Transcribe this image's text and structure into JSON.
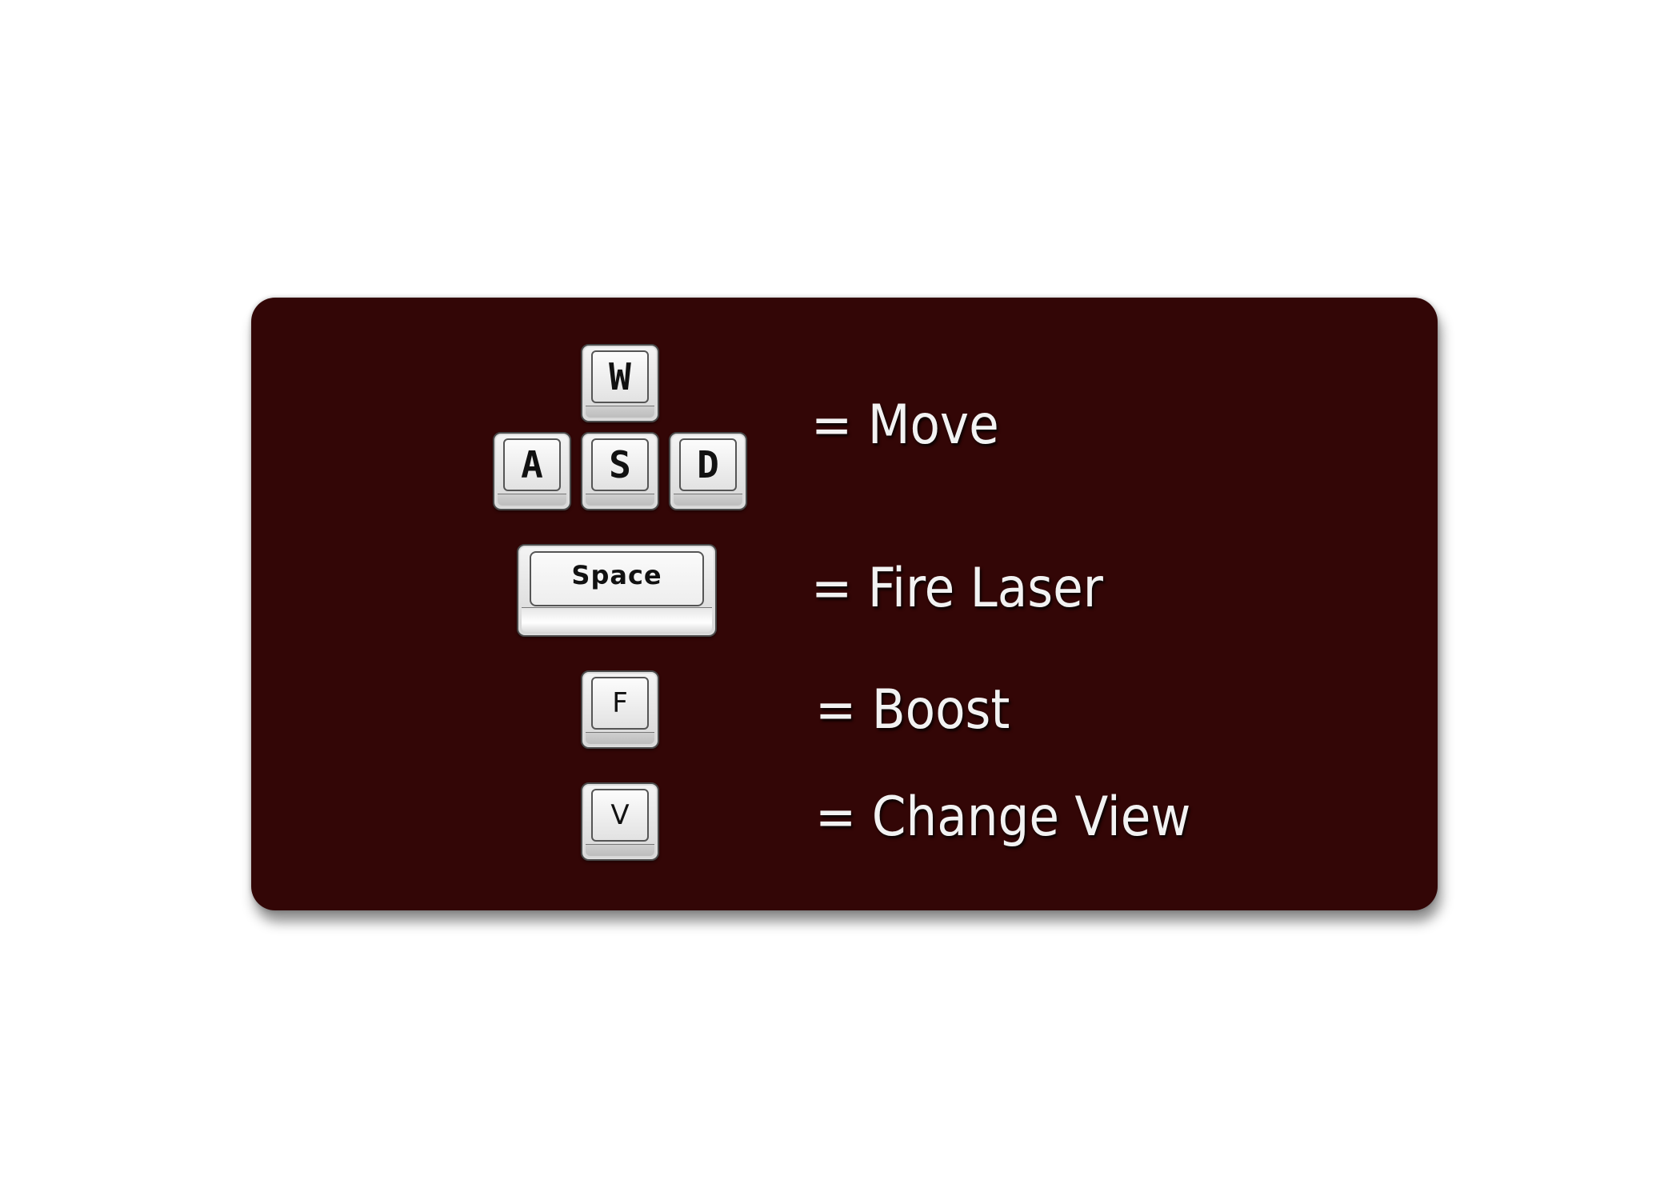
{
  "keys": {
    "w": "W",
    "a": "A",
    "s": "S",
    "d": "D",
    "space": "Space",
    "f": "F",
    "v": "V"
  },
  "actions": {
    "move": "= Move",
    "fire": "= Fire Laser",
    "boost": "= Boost",
    "view": "= Change View"
  },
  "colors": {
    "panel": "#330606",
    "key": "#e8e8e8",
    "label": "#f2f2f2"
  }
}
